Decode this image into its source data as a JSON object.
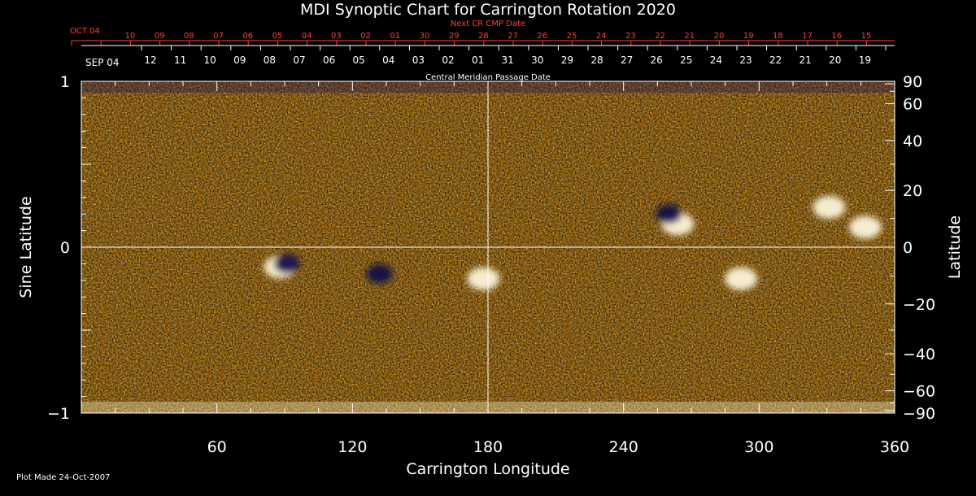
{
  "chart_data": {
    "type": "heatmap",
    "title": "MDI Synoptic Chart for Carrington Rotation 2020",
    "xlabel": "Carrington Longitude",
    "ylabel": "Sine Latitude",
    "y2label": "Latitude",
    "xlim": [
      0,
      360
    ],
    "ylim": [
      -1,
      1
    ],
    "x_ticks": [
      60,
      120,
      180,
      240,
      300,
      360
    ],
    "y_ticks": [
      -1,
      0,
      1
    ],
    "y_tick_labels": [
      "−1",
      "0",
      "1"
    ],
    "lat_ticks": [
      90,
      60,
      40,
      20,
      0,
      -20,
      -40,
      -60,
      -90
    ],
    "lat_tick_labels": [
      "90",
      "60",
      "40",
      "20",
      "0",
      "−20",
      "−40",
      "−60",
      "−90"
    ],
    "top_axis": {
      "label": "Central Meridian Passage Date",
      "start_label": "SEP 04",
      "dates": [
        "12",
        "11",
        "10",
        "09",
        "08",
        "07",
        "06",
        "05",
        "04",
        "03",
        "02",
        "01",
        "31",
        "30",
        "29",
        "28",
        "27",
        "26",
        "25",
        "24",
        "23",
        "22",
        "21",
        "20",
        "19"
      ]
    },
    "next_axis": {
      "label": "Next CR CMP Date",
      "start_label": "OCT 04",
      "dates": [
        "10",
        "09",
        "08",
        "07",
        "06",
        "05",
        "04",
        "03",
        "02",
        "01",
        "30",
        "29",
        "28",
        "27",
        "26",
        "25",
        "24",
        "23",
        "22",
        "21",
        "20",
        "19",
        "18",
        "17",
        "16",
        "15"
      ]
    },
    "footnote": "Plot Made 24-Oct-2007",
    "colorscale": [
      "#140a5a",
      "#c81400",
      "#ff5000",
      "#ff9a10",
      "#fff0c0",
      "#ffffff"
    ],
    "features": [
      {
        "lon": 88,
        "sinlat": -0.12,
        "polarity": "positive"
      },
      {
        "lon": 91,
        "sinlat": -0.1,
        "polarity": "negative"
      },
      {
        "lon": 132,
        "sinlat": -0.16,
        "polarity": "negative"
      },
      {
        "lon": 178,
        "sinlat": -0.19,
        "polarity": "positive"
      },
      {
        "lon": 264,
        "sinlat": 0.14,
        "polarity": "positive"
      },
      {
        "lon": 260,
        "sinlat": 0.2,
        "polarity": "negative"
      },
      {
        "lon": 292,
        "sinlat": -0.19,
        "polarity": "positive"
      },
      {
        "lon": 331,
        "sinlat": 0.24,
        "polarity": "positive"
      },
      {
        "lon": 347,
        "sinlat": 0.12,
        "polarity": "positive"
      }
    ]
  }
}
